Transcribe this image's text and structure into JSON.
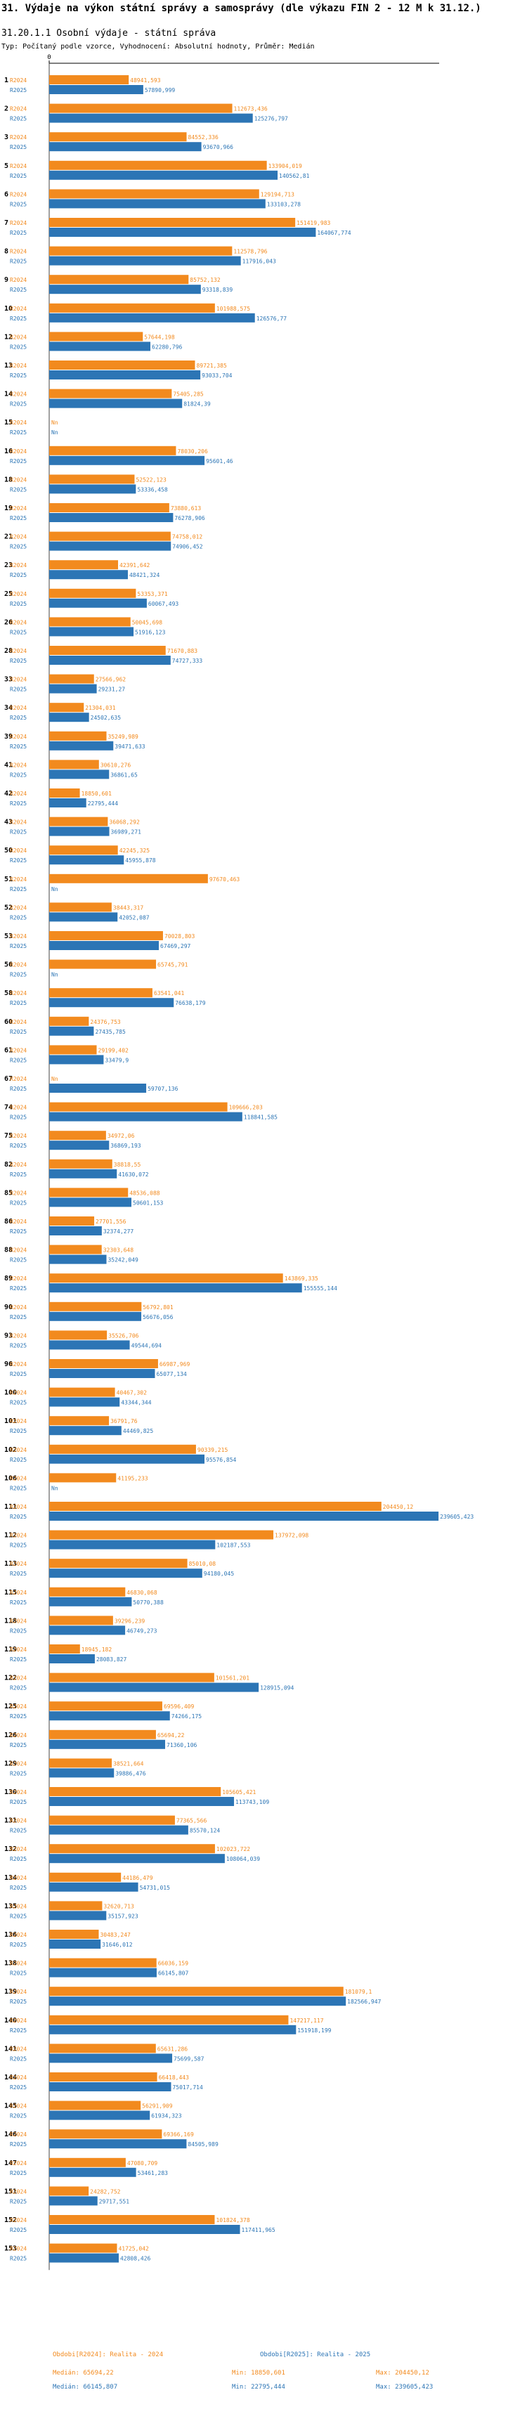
{
  "title": "31. Výdaje na výkon státní správy a samosprávy (dle výkazu FIN 2 - 12 M k 31.12.)",
  "subtitle": "31.20.1.1 Osobní výdaje - státní správa",
  "type_line": "Typ: Počítaný podle vzorce, Vyhodnocení: Absolutní hodnoty, Průměr: Medián",
  "colors": {
    "r2024": "#f28a1e",
    "r2025": "#2c75b5"
  },
  "chart_data": {
    "type": "bar",
    "orientation": "horizontal",
    "axis_zero_label": "0",
    "xlim": [
      0,
      240000
    ],
    "grid": false,
    "series_labels": [
      "R2024",
      "R2025"
    ],
    "na_label": "Nn",
    "groups": [
      {
        "id": "1",
        "r2024_label": "48941,593",
        "r2024": 48941.593,
        "r2025_label": "57890,999",
        "r2025": 57890.999
      },
      {
        "id": "2",
        "r2024_label": "112673,436",
        "r2024": 112673.436,
        "r2025_label": "125276,797",
        "r2025": 125276.797
      },
      {
        "id": "3",
        "r2024_label": "84552,336",
        "r2024": 84552.336,
        "r2025_label": "93670,966",
        "r2025": 93670.966
      },
      {
        "id": "5",
        "r2024_label": "133904,019",
        "r2024": 133904.019,
        "r2025_label": "140562,81",
        "r2025": 140562.81
      },
      {
        "id": "6",
        "r2024_label": "129194,713",
        "r2024": 129194.713,
        "r2025_label": "133103,278",
        "r2025": 133103.278
      },
      {
        "id": "7",
        "r2024_label": "151419,983",
        "r2024": 151419.983,
        "r2025_label": "164067,774",
        "r2025": 164067.774
      },
      {
        "id": "8",
        "r2024_label": "112578,796",
        "r2024": 112578.796,
        "r2025_label": "117916,043",
        "r2025": 117916.043
      },
      {
        "id": "9",
        "r2024_label": "85752,132",
        "r2024": 85752.132,
        "r2025_label": "93318,839",
        "r2025": 93318.839
      },
      {
        "id": "10",
        "r2024_label": "101988,575",
        "r2024": 101988.575,
        "r2025_label": "126576,77",
        "r2025": 126576.77
      },
      {
        "id": "12",
        "r2024_label": "57644,198",
        "r2024": 57644.198,
        "r2025_label": "62280,796",
        "r2025": 62280.796
      },
      {
        "id": "13",
        "r2024_label": "89721,385",
        "r2024": 89721.385,
        "r2025_label": "93033,704",
        "r2025": 93033.704
      },
      {
        "id": "14",
        "r2024_label": "75405,285",
        "r2024": 75405.285,
        "r2025_label": "81824,39",
        "r2025": 81824.39
      },
      {
        "id": "15",
        "r2024_label": "Nn",
        "r2024": null,
        "r2025_label": "Nn",
        "r2025": null
      },
      {
        "id": "16",
        "r2024_label": "78030,206",
        "r2024": 78030.206,
        "r2025_label": "95601,46",
        "r2025": 95601.46
      },
      {
        "id": "18",
        "r2024_label": "52522,123",
        "r2024": 52522.123,
        "r2025_label": "53336,458",
        "r2025": 53336.458
      },
      {
        "id": "19",
        "r2024_label": "73880,613",
        "r2024": 73880.613,
        "r2025_label": "76278,906",
        "r2025": 76278.906
      },
      {
        "id": "21",
        "r2024_label": "74758,012",
        "r2024": 74758.012,
        "r2025_label": "74906,452",
        "r2025": 74906.452
      },
      {
        "id": "23",
        "r2024_label": "42391,642",
        "r2024": 42391.642,
        "r2025_label": "48421,324",
        "r2025": 48421.324
      },
      {
        "id": "25",
        "r2024_label": "53353,371",
        "r2024": 53353.371,
        "r2025_label": "60067,493",
        "r2025": 60067.493
      },
      {
        "id": "26",
        "r2024_label": "50045,698",
        "r2024": 50045.698,
        "r2025_label": "51916,123",
        "r2025": 51916.123
      },
      {
        "id": "28",
        "r2024_label": "71670,883",
        "r2024": 71670.883,
        "r2025_label": "74727,333",
        "r2025": 74727.333
      },
      {
        "id": "33",
        "r2024_label": "27566,962",
        "r2024": 27566.962,
        "r2025_label": "29231,27",
        "r2025": 29231.27
      },
      {
        "id": "34",
        "r2024_label": "21304,031",
        "r2024": 21304.031,
        "r2025_label": "24502,635",
        "r2025": 24502.635
      },
      {
        "id": "39",
        "r2024_label": "35249,989",
        "r2024": 35249.989,
        "r2025_label": "39471,633",
        "r2025": 39471.633
      },
      {
        "id": "41",
        "r2024_label": "30610,276",
        "r2024": 30610.276,
        "r2025_label": "36861,65",
        "r2025": 36861.65
      },
      {
        "id": "42",
        "r2024_label": "18850,601",
        "r2024": 18850.601,
        "r2025_label": "22795,444",
        "r2025": 22795.444
      },
      {
        "id": "43",
        "r2024_label": "36068,292",
        "r2024": 36068.292,
        "r2025_label": "36989,271",
        "r2025": 36989.271
      },
      {
        "id": "50",
        "r2024_label": "42245,325",
        "r2024": 42245.325,
        "r2025_label": "45955,878",
        "r2025": 45955.878
      },
      {
        "id": "51",
        "r2024_label": "97670,463",
        "r2024": 97670.463,
        "r2025_label": "Nn",
        "r2025": null
      },
      {
        "id": "52",
        "r2024_label": "38443,317",
        "r2024": 38443.317,
        "r2025_label": "42052,087",
        "r2025": 42052.087
      },
      {
        "id": "53",
        "r2024_label": "70028,803",
        "r2024": 70028.803,
        "r2025_label": "67469,297",
        "r2025": 67469.297
      },
      {
        "id": "56",
        "r2024_label": "65745,791",
        "r2024": 65745.791,
        "r2025_label": "Nn",
        "r2025": null
      },
      {
        "id": "58",
        "r2024_label": "63541,041",
        "r2024": 63541.041,
        "r2025_label": "76638,179",
        "r2025": 76638.179
      },
      {
        "id": "60",
        "r2024_label": "24376,753",
        "r2024": 24376.753,
        "r2025_label": "27435,785",
        "r2025": 27435.785
      },
      {
        "id": "61",
        "r2024_label": "29199,402",
        "r2024": 29199.402,
        "r2025_label": "33479,9",
        "r2025": 33479.9
      },
      {
        "id": "67",
        "r2024_label": "Nn",
        "r2024": null,
        "r2025_label": "59707,136",
        "r2025": 59707.136
      },
      {
        "id": "74",
        "r2024_label": "109666,203",
        "r2024": 109666.203,
        "r2025_label": "118841,585",
        "r2025": 118841.585
      },
      {
        "id": "75",
        "r2024_label": "34972,06",
        "r2024": 34972.06,
        "r2025_label": "36869,193",
        "r2025": 36869.193
      },
      {
        "id": "82",
        "r2024_label": "38818,55",
        "r2024": 38818.55,
        "r2025_label": "41630,072",
        "r2025": 41630.072
      },
      {
        "id": "85",
        "r2024_label": "48536,088",
        "r2024": 48536.088,
        "r2025_label": "50601,153",
        "r2025": 50601.153
      },
      {
        "id": "86",
        "r2024_label": "27701,556",
        "r2024": 27701.556,
        "r2025_label": "32374,277",
        "r2025": 32374.277
      },
      {
        "id": "88",
        "r2024_label": "32303,648",
        "r2024": 32303.648,
        "r2025_label": "35242,049",
        "r2025": 35242.049
      },
      {
        "id": "89",
        "r2024_label": "143869,335",
        "r2024": 143869.335,
        "r2025_label": "155555,144",
        "r2025": 155555.144
      },
      {
        "id": "90",
        "r2024_label": "56792,801",
        "r2024": 56792.801,
        "r2025_label": "56676,056",
        "r2025": 56676.056
      },
      {
        "id": "93",
        "r2024_label": "35526,706",
        "r2024": 35526.706,
        "r2025_label": "49544,694",
        "r2025": 49544.694
      },
      {
        "id": "96",
        "r2024_label": "66987,969",
        "r2024": 66987.969,
        "r2025_label": "65077,134",
        "r2025": 65077.134
      },
      {
        "id": "100",
        "r2024_label": "40467,302",
        "r2024": 40467.302,
        "r2025_label": "43344,344",
        "r2025": 43344.344
      },
      {
        "id": "101",
        "r2024_label": "36791,76",
        "r2024": 36791.76,
        "r2025_label": "44469,825",
        "r2025": 44469.825
      },
      {
        "id": "102",
        "r2024_label": "90339,215",
        "r2024": 90339.215,
        "r2025_label": "95576,854",
        "r2025": 95576.854
      },
      {
        "id": "106",
        "r2024_label": "41195,233",
        "r2024": 41195.233,
        "r2025_label": "Nn",
        "r2025": null
      },
      {
        "id": "111",
        "r2024_label": "204450,12",
        "r2024": 204450.12,
        "r2025_label": "239605,423",
        "r2025": 239605.423
      },
      {
        "id": "112",
        "r2024_label": "137972,098",
        "r2024": 137972.098,
        "r2025_label": "102187,553",
        "r2025": 102187.553
      },
      {
        "id": "113",
        "r2024_label": "85010,08",
        "r2024": 85010.08,
        "r2025_label": "94180,045",
        "r2025": 94180.045
      },
      {
        "id": "115",
        "r2024_label": "46830,068",
        "r2024": 46830.068,
        "r2025_label": "50770,388",
        "r2025": 50770.388
      },
      {
        "id": "118",
        "r2024_label": "39296,239",
        "r2024": 39296.239,
        "r2025_label": "46749,273",
        "r2025": 46749.273
      },
      {
        "id": "119",
        "r2024_label": "18945,182",
        "r2024": 18945.182,
        "r2025_label": "28083,827",
        "r2025": 28083.827
      },
      {
        "id": "122",
        "r2024_label": "101561,201",
        "r2024": 101561.201,
        "r2025_label": "128915,094",
        "r2025": 128915.094
      },
      {
        "id": "125",
        "r2024_label": "69596,409",
        "r2024": 69596.409,
        "r2025_label": "74266,175",
        "r2025": 74266.175
      },
      {
        "id": "126",
        "r2024_label": "65694,22",
        "r2024": 65694.22,
        "r2025_label": "71360,106",
        "r2025": 71360.106
      },
      {
        "id": "129",
        "r2024_label": "38521,664",
        "r2024": 38521.664,
        "r2025_label": "39886,476",
        "r2025": 39886.476
      },
      {
        "id": "130",
        "r2024_label": "105605,421",
        "r2024": 105605.421,
        "r2025_label": "113743,109",
        "r2025": 113743.109
      },
      {
        "id": "131",
        "r2024_label": "77365,566",
        "r2024": 77365.566,
        "r2025_label": "85570,124",
        "r2025": 85570.124
      },
      {
        "id": "132",
        "r2024_label": "102023,722",
        "r2024": 102023.722,
        "r2025_label": "108064,039",
        "r2025": 108064.039
      },
      {
        "id": "134",
        "r2024_label": "44186,479",
        "r2024": 44186.479,
        "r2025_label": "54731,015",
        "r2025": 54731.015
      },
      {
        "id": "135",
        "r2024_label": "32620,713",
        "r2024": 32620.713,
        "r2025_label": "35157,923",
        "r2025": 35157.923
      },
      {
        "id": "136",
        "r2024_label": "30483,247",
        "r2024": 30483.247,
        "r2025_label": "31646,012",
        "r2025": 31646.012
      },
      {
        "id": "138",
        "r2024_label": "66036,159",
        "r2024": 66036.159,
        "r2025_label": "66145,807",
        "r2025": 66145.807
      },
      {
        "id": "139",
        "r2024_label": "181079,1",
        "r2024": 181079.1,
        "r2025_label": "182566,947",
        "r2025": 182566.947
      },
      {
        "id": "140",
        "r2024_label": "147217,117",
        "r2024": 147217.117,
        "r2025_label": "151918,199",
        "r2025": 151918.199
      },
      {
        "id": "141",
        "r2024_label": "65631,286",
        "r2024": 65631.286,
        "r2025_label": "75699,587",
        "r2025": 75699.587
      },
      {
        "id": "144",
        "r2024_label": "66418,443",
        "r2024": 66418.443,
        "r2025_label": "75017,714",
        "r2025": 75017.714
      },
      {
        "id": "145",
        "r2024_label": "56291,909",
        "r2024": 56291.909,
        "r2025_label": "61934,323",
        "r2025": 61934.323
      },
      {
        "id": "146",
        "r2024_label": "69366,169",
        "r2024": 69366.169,
        "r2025_label": "84505,989",
        "r2025": 84505.989
      },
      {
        "id": "147",
        "r2024_label": "47080,709",
        "r2024": 47080.709,
        "r2025_label": "53461,283",
        "r2025": 53461.283
      },
      {
        "id": "151",
        "r2024_label": "24282,752",
        "r2024": 24282.752,
        "r2025_label": "29717,551",
        "r2025": 29717.551
      },
      {
        "id": "152",
        "r2024_label": "101824,378",
        "r2024": 101824.378,
        "r2025_label": "117411,965",
        "r2025": 117411.965
      },
      {
        "id": "153",
        "r2024_label": "41725,042",
        "r2024": 41725.042,
        "r2025_label": "42808,426",
        "r2025": 42808.426
      }
    ],
    "legend": [
      {
        "label": "Obdobi[R2024]: Realita - 2024",
        "color": "#f28a1e"
      },
      {
        "label": "Obdobi[R2025]: Realita - 2025",
        "color": "#2c75b5"
      }
    ],
    "stats_2024": {
      "median": "Medián: 65694,22",
      "min": "Min: 18850,601",
      "max": "Max: 204450,12"
    },
    "stats_2025": {
      "median": "Medián: 66145,807",
      "min": "Min: 22795,444",
      "max": "Max: 239605,423"
    }
  }
}
